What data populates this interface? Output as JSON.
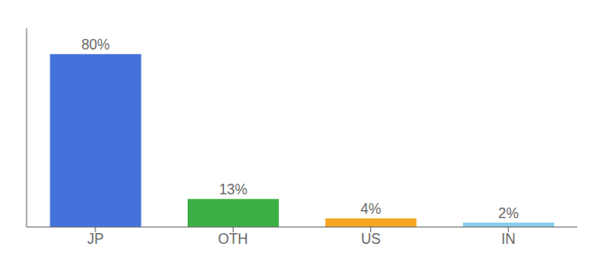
{
  "chart_data": {
    "type": "bar",
    "categories": [
      "JP",
      "OTH",
      "US",
      "IN"
    ],
    "values": [
      80,
      13,
      4,
      2
    ],
    "colors": [
      "#4472db",
      "#3cb044",
      "#f5a623",
      "#87ceeb"
    ],
    "value_labels": [
      "80%",
      "13%",
      "4%",
      "2%"
    ],
    "data_labels": true,
    "ylim": [
      0,
      92
    ],
    "yticks": [],
    "tick_labels": "x"
  }
}
